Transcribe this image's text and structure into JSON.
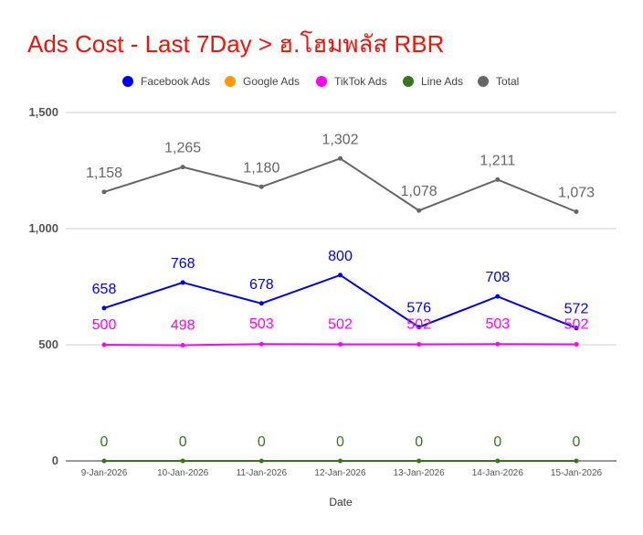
{
  "chart_data": {
    "type": "line",
    "title": "Ads Cost - Last 7Day > ฮ.โฮมพลัส RBR",
    "xlabel": "Date",
    "ylabel": "",
    "ylim": [
      0,
      1500
    ],
    "yticks": [
      0,
      500,
      1000,
      1500
    ],
    "ytick_labels": [
      "0",
      "500",
      "1,000",
      "1,500"
    ],
    "grid": true,
    "legend_position": "top",
    "categories": [
      "9-Jan-2026",
      "10-Jan-2026",
      "11-Jan-2026",
      "12-Jan-2026",
      "13-Jan-2026",
      "14-Jan-2026",
      "15-Jan-2026"
    ],
    "series": [
      {
        "name": "Facebook Ads",
        "color": "#0000ee",
        "values": [
          658,
          768,
          678,
          800,
          576,
          708,
          572
        ],
        "labels": [
          "658",
          "768",
          "678",
          "800",
          "576",
          "708",
          "572"
        ],
        "show_labels": true
      },
      {
        "name": "Google Ads",
        "color": "#ff9900",
        "values": [
          0,
          0,
          0,
          0,
          0,
          0,
          0
        ],
        "labels": [
          "0",
          "0",
          "0",
          "0",
          "0",
          "0",
          "0"
        ],
        "show_labels": false
      },
      {
        "name": "TikTok Ads",
        "color": "#ff00ff",
        "values": [
          500,
          498,
          503,
          502,
          502,
          503,
          502
        ],
        "labels": [
          "500",
          "498",
          "503",
          "502",
          "502",
          "503",
          "502"
        ],
        "show_labels": true
      },
      {
        "name": "Line Ads",
        "color": "#38761d",
        "values": [
          0,
          0,
          0,
          0,
          0,
          0,
          0
        ],
        "labels": [
          "0",
          "0",
          "0",
          "0",
          "0",
          "0",
          "0"
        ],
        "show_labels": true
      },
      {
        "name": "Total",
        "color": "#666666",
        "values": [
          1158,
          1265,
          1180,
          1302,
          1078,
          1211,
          1073
        ],
        "labels": [
          "1,158",
          "1,265",
          "1,180",
          "1,302",
          "1,078",
          "1,211",
          "1,073"
        ],
        "show_labels": true
      }
    ]
  }
}
